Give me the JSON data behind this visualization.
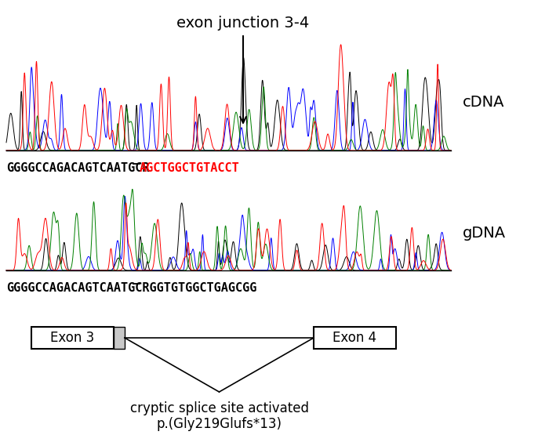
{
  "title_annotation": "exon junction 3-4",
  "cdna_label": "cDNA",
  "gdna_label": "gDNA",
  "cdna_seq_black": "GGGGCCAGACAGTCAATGCR",
  "cdna_seq_red": "AGCTGGCTGTACCT",
  "gdna_seq_black": "GGGGCCAGACAGTCAATGCR",
  "gdna_seq_rest": "GGTGTGGCTGAGCGG",
  "exon3_label": "Exon 3",
  "exon4_label": "Exon 4",
  "bottom_text_line1": "cryptic splice site activated",
  "bottom_text_line2": "p.(Gly219Glufs*13)",
  "bg_color": "#ffffff",
  "fig_width": 7.09,
  "fig_height": 5.69,
  "dpi": 100
}
